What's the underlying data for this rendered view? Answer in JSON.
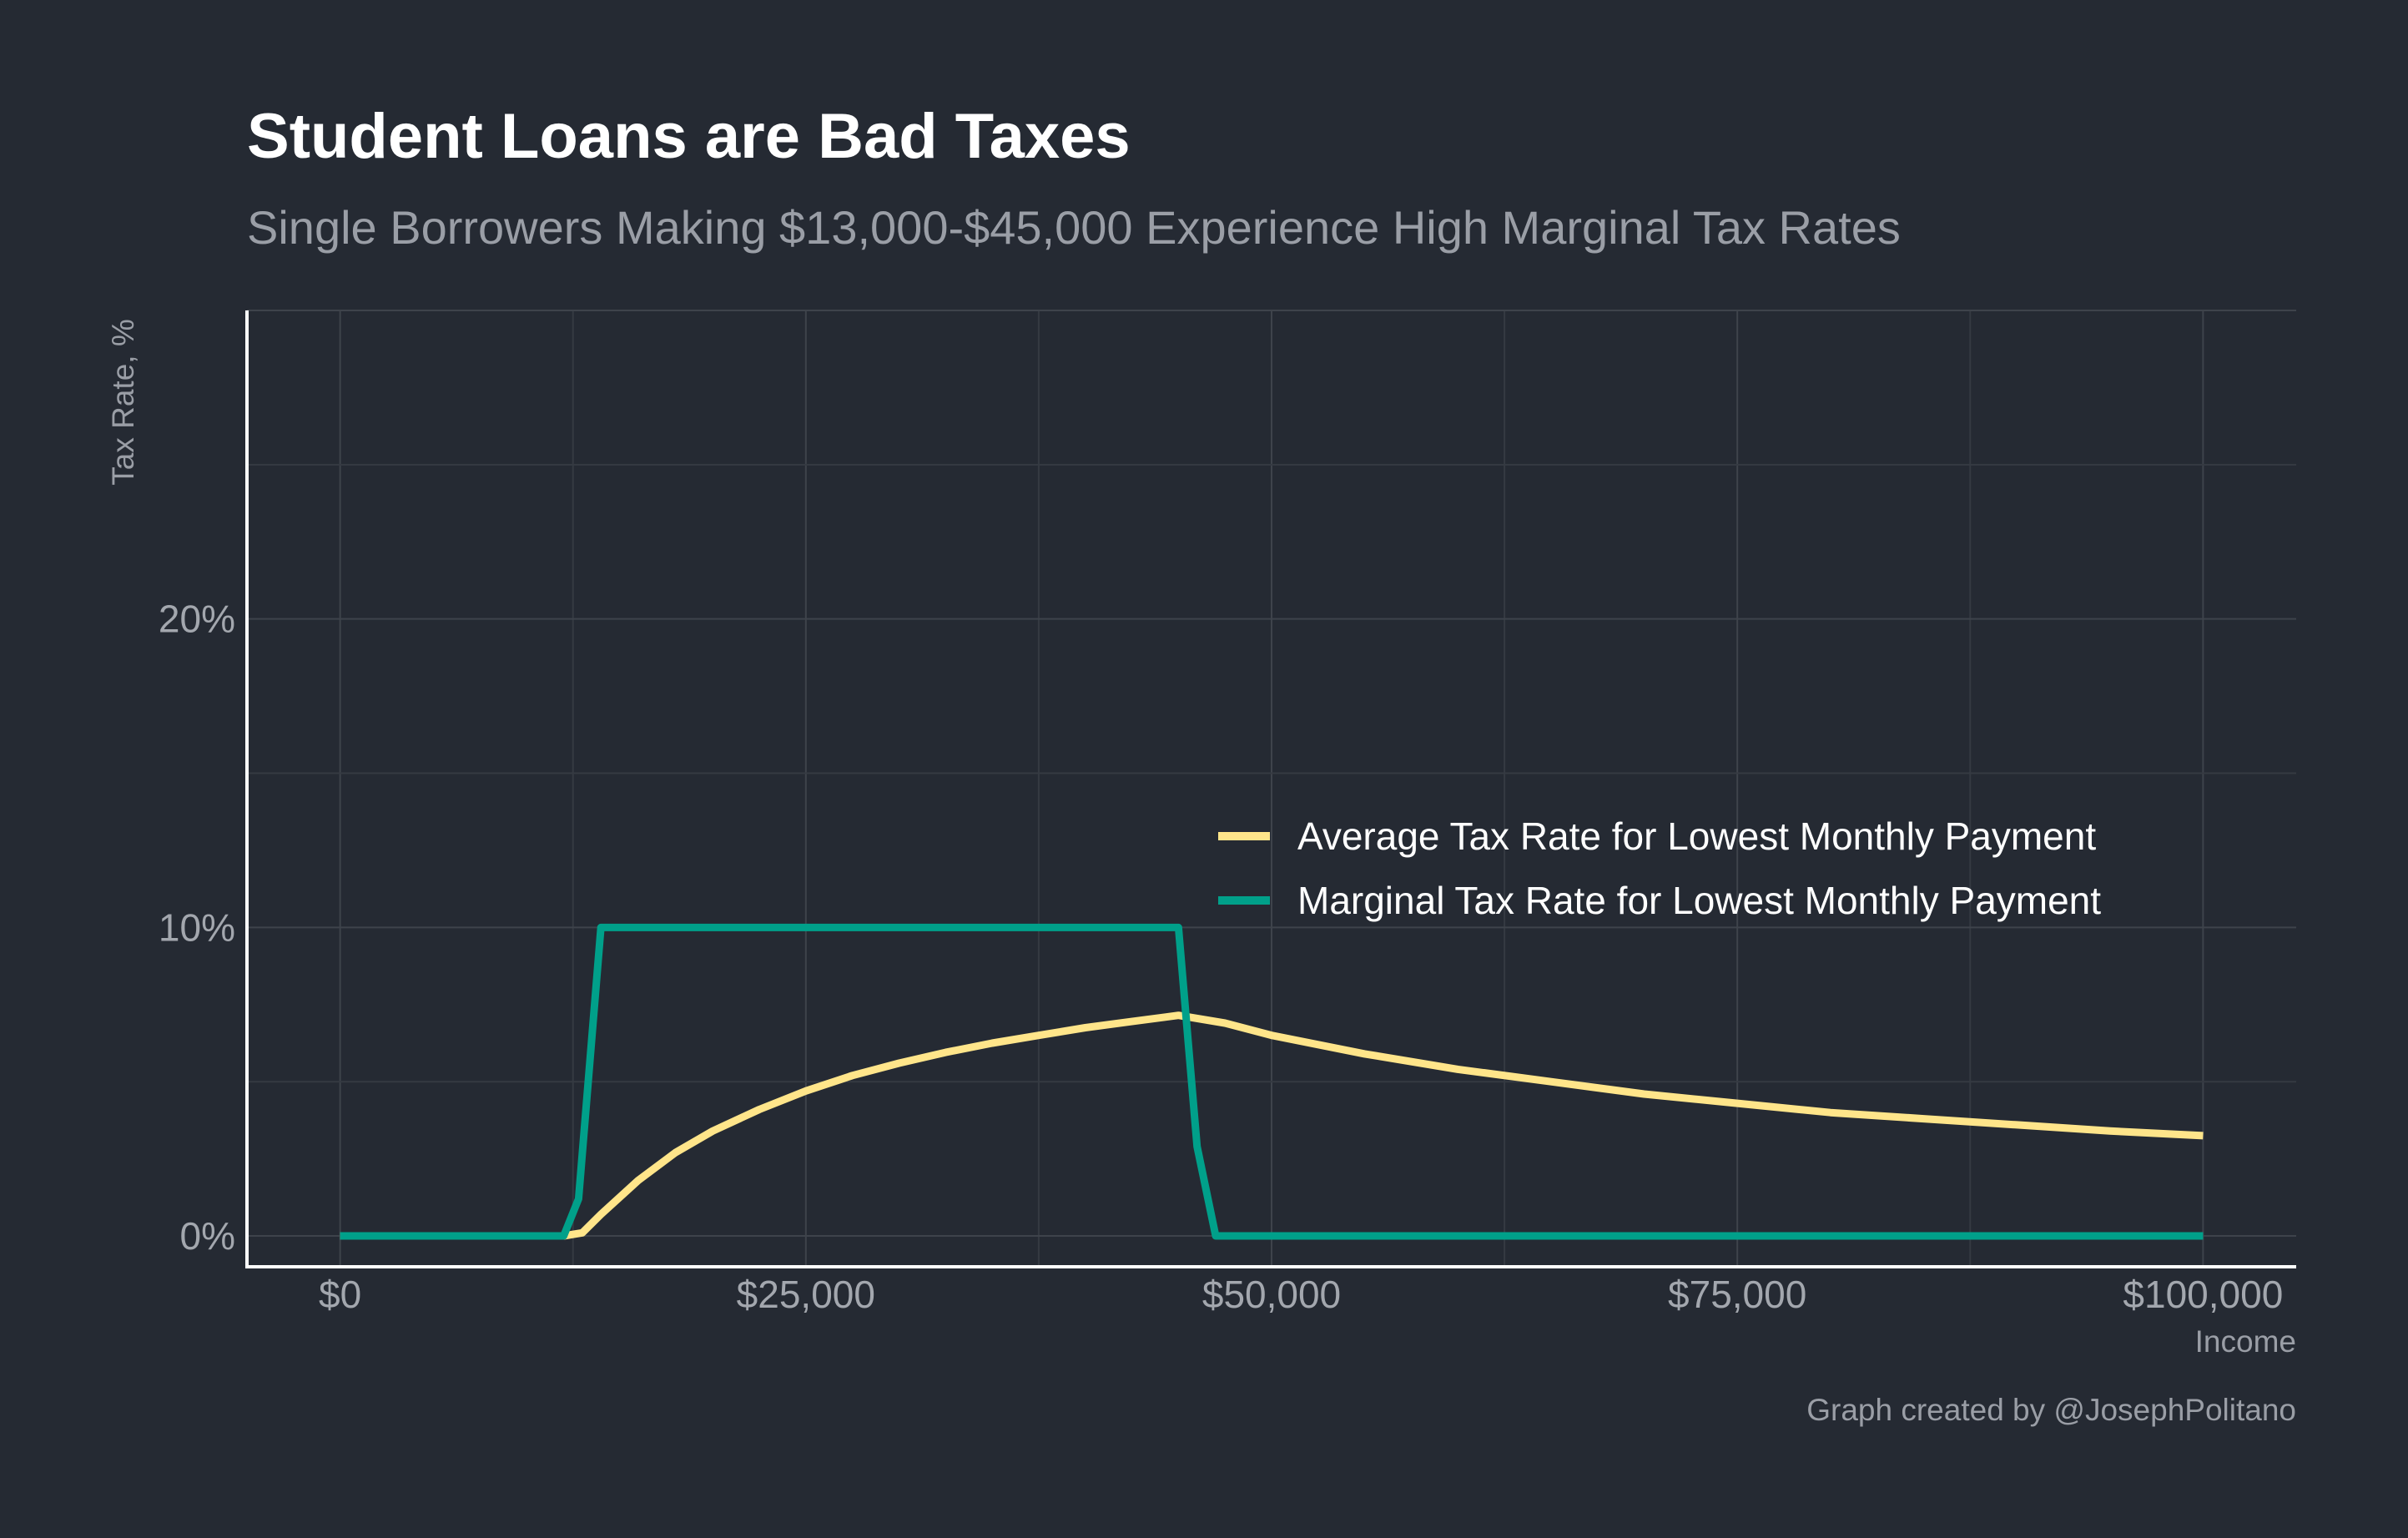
{
  "header": {
    "title": "Student Loans are Bad Taxes",
    "subtitle": "Single Borrowers Making $13,000-$45,000 Experience High Marginal Tax Rates"
  },
  "caption": "Graph created by @JosephPolitano",
  "colors": {
    "background": "#252a33",
    "average_series": "#ffe58a",
    "marginal_series": "#00a08a"
  },
  "chart_data": {
    "type": "line",
    "title": "Student Loans are Bad Taxes",
    "subtitle": "Single Borrowers Making $13,000-$45,000 Experience High Marginal Tax Rates",
    "xlabel": "Income",
    "ylabel": "Tax Rate, %",
    "xlim": [
      -5000,
      105000
    ],
    "ylim": [
      -1,
      30
    ],
    "x_ticks": [
      {
        "value": 0,
        "label": "$0"
      },
      {
        "value": 25000,
        "label": "$25,000"
      },
      {
        "value": 50000,
        "label": "$50,000"
      },
      {
        "value": 75000,
        "label": "$75,000"
      },
      {
        "value": 100000,
        "label": "$100,000"
      }
    ],
    "y_ticks": [
      {
        "value": 0,
        "label": "0%"
      },
      {
        "value": 10,
        "label": "10%"
      },
      {
        "value": 20,
        "label": "20%"
      }
    ],
    "grid": true,
    "legend_position": "right-center",
    "series": [
      {
        "name": "Average Tax Rate for Lowest Monthly Payment",
        "color": "#ffe58a",
        "points": [
          [
            0,
            0
          ],
          [
            12000,
            0
          ],
          [
            13000,
            0.1
          ],
          [
            14000,
            0.7
          ],
          [
            16000,
            1.8
          ],
          [
            18000,
            2.7
          ],
          [
            20000,
            3.4
          ],
          [
            22500,
            4.1
          ],
          [
            25000,
            4.7
          ],
          [
            27500,
            5.2
          ],
          [
            30000,
            5.6
          ],
          [
            32500,
            5.95
          ],
          [
            35000,
            6.25
          ],
          [
            37500,
            6.5
          ],
          [
            40000,
            6.75
          ],
          [
            42500,
            6.95
          ],
          [
            45000,
            7.15
          ],
          [
            47500,
            6.9
          ],
          [
            50000,
            6.5
          ],
          [
            55000,
            5.9
          ],
          [
            60000,
            5.4
          ],
          [
            65000,
            5.0
          ],
          [
            70000,
            4.6
          ],
          [
            75000,
            4.3
          ],
          [
            80000,
            4.0
          ],
          [
            85000,
            3.8
          ],
          [
            90000,
            3.6
          ],
          [
            95000,
            3.4
          ],
          [
            100000,
            3.25
          ]
        ]
      },
      {
        "name": "Marginal Tax Rate for Lowest Monthly Payment",
        "color": "#00a08a",
        "points": [
          [
            0,
            0
          ],
          [
            12000,
            0
          ],
          [
            12800,
            1.2
          ],
          [
            14000,
            10
          ],
          [
            20000,
            10
          ],
          [
            30000,
            10
          ],
          [
            40000,
            10
          ],
          [
            45000,
            10
          ],
          [
            46000,
            2.9
          ],
          [
            47000,
            0
          ],
          [
            60000,
            0
          ],
          [
            80000,
            0
          ],
          [
            100000,
            0
          ]
        ]
      }
    ]
  }
}
